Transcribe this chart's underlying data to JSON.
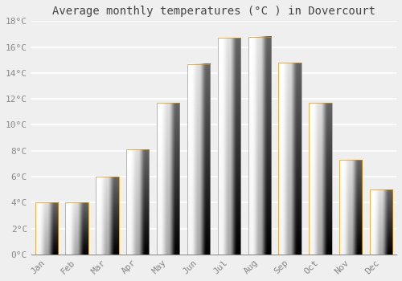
{
  "months": [
    "Jan",
    "Feb",
    "Mar",
    "Apr",
    "May",
    "Jun",
    "Jul",
    "Aug",
    "Sep",
    "Oct",
    "Nov",
    "Dec"
  ],
  "values": [
    4.0,
    4.0,
    6.0,
    8.1,
    11.7,
    14.7,
    16.7,
    16.8,
    14.8,
    11.7,
    7.3,
    5.0
  ],
  "bar_color_bottom": "#F5A800",
  "bar_color_top": "#FFE066",
  "title": "Average monthly temperatures (°C ) in Dovercourt",
  "ylim": [
    0,
    18
  ],
  "yticks": [
    0,
    2,
    4,
    6,
    8,
    10,
    12,
    14,
    16,
    18
  ],
  "ytick_labels": [
    "0°C",
    "2°C",
    "4°C",
    "6°C",
    "8°C",
    "10°C",
    "12°C",
    "14°C",
    "16°C",
    "18°C"
  ],
  "background_color": "#efefef",
  "grid_color": "#ffffff",
  "title_fontsize": 10,
  "tick_fontsize": 8,
  "font_family": "monospace",
  "bar_width": 0.75
}
